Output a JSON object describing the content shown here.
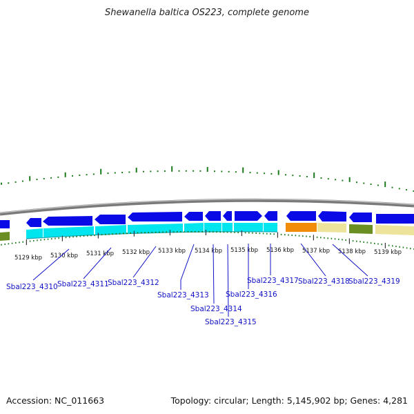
{
  "title": "Shewanella baltica OS223, complete genome",
  "footer": {
    "accession": "Accession: NC_011663",
    "summary": "Topology: circular; Length: 5,145,902 bp; Genes: 4,281"
  },
  "kbp_labels": [
    "5129 kbp",
    "5130 kbp",
    "5131 kbp",
    "5132 kbp",
    "5133 kbp",
    "5134 kbp",
    "5135 kbp",
    "5136 kbp",
    "5137 kbp",
    "5138 kbp",
    "5139 kbp"
  ],
  "gene_labels": [
    "Sbal223_4310",
    "Sbal223_4311",
    "Sbal223_4312",
    "Sbal223_4313",
    "Sbal223_4314",
    "Sbal223_4315",
    "Sbal223_4316",
    "Sbal223_4317",
    "Sbal223_4318",
    "Sbal223_4319"
  ],
  "colors": {
    "cds_arrow": "#0a0ae6",
    "cds_cyan": "#00e5ee",
    "orange": "#f08c0a",
    "khaki": "#eee39a",
    "olive": "#6b8e23",
    "gc_tick": "#1a7a1a",
    "backbone": "#7a7a7a",
    "label_line": "#1010c8"
  }
}
